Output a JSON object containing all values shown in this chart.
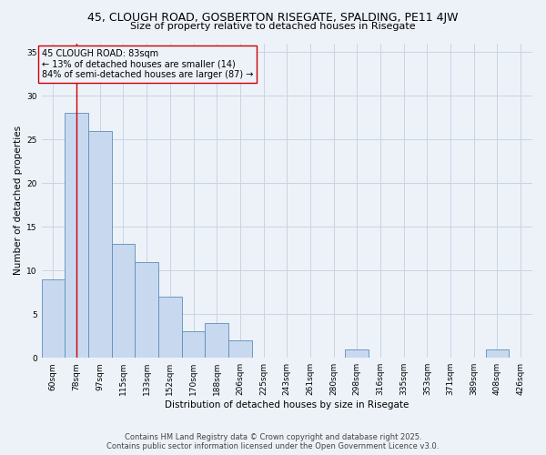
{
  "title": "45, CLOUGH ROAD, GOSBERTON RISEGATE, SPALDING, PE11 4JW",
  "subtitle": "Size of property relative to detached houses in Risegate",
  "xlabel": "Distribution of detached houses by size in Risegate",
  "ylabel": "Number of detached properties",
  "categories": [
    "60sqm",
    "78sqm",
    "97sqm",
    "115sqm",
    "133sqm",
    "152sqm",
    "170sqm",
    "188sqm",
    "206sqm",
    "225sqm",
    "243sqm",
    "261sqm",
    "280sqm",
    "298sqm",
    "316sqm",
    "335sqm",
    "353sqm",
    "371sqm",
    "389sqm",
    "408sqm",
    "426sqm"
  ],
  "values": [
    9,
    28,
    26,
    13,
    11,
    7,
    3,
    4,
    2,
    0,
    0,
    0,
    0,
    1,
    0,
    0,
    0,
    0,
    0,
    1,
    0
  ],
  "bar_color": "#c8d9ef",
  "bar_edge_color": "#5b8db8",
  "grid_color": "#c8d4e4",
  "background_color": "#edf2f9",
  "vline_x": 1,
  "vline_color": "#cc0000",
  "annotation_box_text": "45 CLOUGH ROAD: 83sqm\n← 13% of detached houses are smaller (14)\n84% of semi-detached houses are larger (87) →",
  "footer_line1": "Contains HM Land Registry data © Crown copyright and database right 2025.",
  "footer_line2": "Contains public sector information licensed under the Open Government Licence v3.0.",
  "ylim": [
    0,
    36
  ],
  "yticks": [
    0,
    5,
    10,
    15,
    20,
    25,
    30,
    35
  ],
  "title_fontsize": 9,
  "subtitle_fontsize": 8,
  "axis_label_fontsize": 7.5,
  "tick_fontsize": 6.5,
  "annotation_fontsize": 7,
  "footer_fontsize": 6
}
